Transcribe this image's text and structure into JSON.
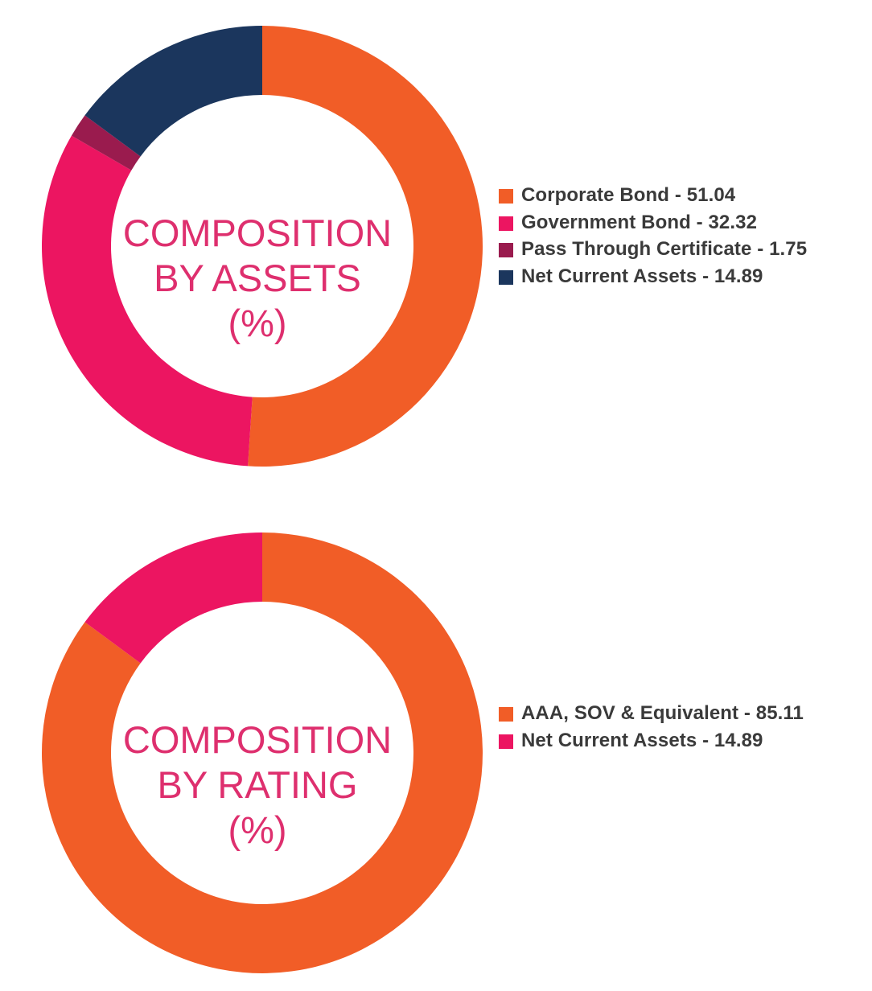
{
  "chart_data": [
    {
      "type": "pie",
      "donut": true,
      "center_text": [
        "COMPOSITION",
        "BY ASSETS",
        "(%)"
      ],
      "categories": [
        "Corporate Bond",
        "Government Bond",
        "Pass Through Certificate",
        "Net Current Assets"
      ],
      "values": [
        51.04,
        32.32,
        1.75,
        14.89
      ],
      "legend_labels": [
        "Corporate Bond - 51.04",
        "Government Bond - 32.32",
        "Pass Through Certificate - 1.75",
        "Net Current Assets - 14.89"
      ],
      "colors": [
        "#f15d27",
        "#ec1561",
        "#9a1b4e",
        "#1b365d"
      ],
      "legend_placement": "right"
    },
    {
      "type": "pie",
      "donut": true,
      "center_text": [
        "COMPOSITION",
        "BY RATING",
        "(%)"
      ],
      "categories": [
        "AAA, SOV & Equivalent",
        "Net Current Assets"
      ],
      "values": [
        85.11,
        14.89
      ],
      "legend_labels": [
        "AAA, SOV & Equivalent - 85.11",
        "Net Current Assets - 14.89"
      ],
      "colors": [
        "#f15d27",
        "#ec1561"
      ],
      "legend_placement": "right"
    }
  ]
}
